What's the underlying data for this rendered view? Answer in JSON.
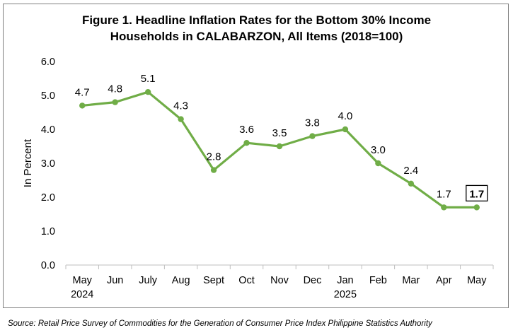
{
  "chart_data": {
    "type": "line",
    "title_line1": "Figure 1. Headline Inflation Rates for the Bottom 30% Income",
    "title_line2": "Households in CALABARZON, All Items (2018=100)",
    "ylabel": "In Percent",
    "xlabel": "",
    "ylim": [
      0,
      6
    ],
    "yticks": [
      "0.0",
      "1.0",
      "2.0",
      "3.0",
      "4.0",
      "5.0",
      "6.0"
    ],
    "categories": [
      "May",
      "Jun",
      "July",
      "Aug",
      "Sept",
      "Oct",
      "Nov",
      "Dec",
      "Jan",
      "Feb",
      "Mar",
      "Apr",
      "May"
    ],
    "year_labels": [
      {
        "index": 0,
        "label": "2024"
      },
      {
        "index": 8,
        "label": "2025"
      }
    ],
    "series": [
      {
        "values": [
          4.7,
          4.8,
          5.1,
          4.3,
          2.8,
          3.6,
          3.5,
          3.8,
          4.0,
          3.0,
          2.4,
          1.7,
          1.7
        ]
      }
    ],
    "data_labels": [
      "4.7",
      "4.8",
      "5.1",
      "4.3",
      "2.8",
      "3.6",
      "3.5",
      "3.8",
      "4.0",
      "3.0",
      "2.4",
      "1.7",
      "1.7"
    ],
    "highlight_index": 12,
    "grid": false,
    "line_color": "#70ad47"
  },
  "source": "Source: Retail Price Survey of Commodities for the Generation of Consumer Price Index Philippine Statistics Authority"
}
